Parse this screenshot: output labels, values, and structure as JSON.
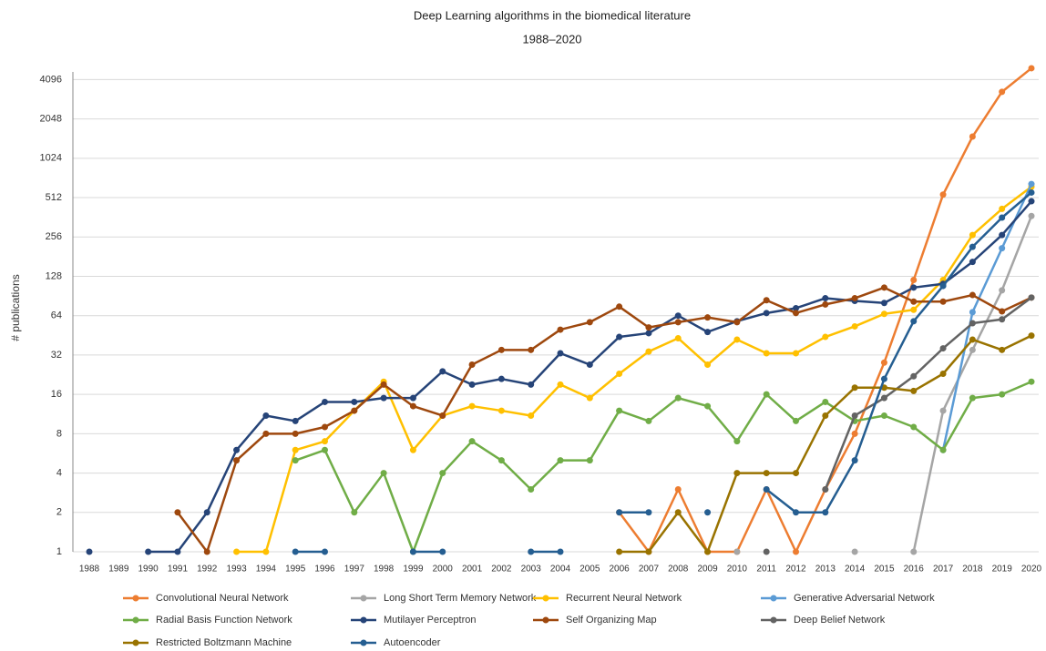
{
  "chart_data": {
    "type": "line",
    "title": "Deep Learning algorithms in the biomedical literature",
    "subtitle": "1988–2020",
    "y_label": "# publications",
    "yscale": "log",
    "log_base": 2,
    "ylim": [
      1,
      5500
    ],
    "yticks": [
      1,
      2,
      4,
      8,
      16,
      32,
      64,
      128,
      256,
      512,
      1024,
      2048,
      4096
    ],
    "grid": true,
    "legend": "bottom",
    "categories": [
      "1988",
      "1989",
      "1990",
      "1991",
      "1992",
      "1993",
      "1994",
      "1995",
      "1996",
      "1997",
      "1998",
      "1999",
      "2000",
      "2001",
      "2002",
      "2003",
      "2004",
      "2005",
      "2006",
      "2007",
      "2008",
      "2009",
      "2010",
      "2011",
      "2012",
      "2013",
      "2014",
      "2015",
      "2016",
      "2017",
      "2018",
      "2019",
      "2020"
    ],
    "series": [
      {
        "name": "Convolutional Neural Network",
        "color": "#ed7d31",
        "values": [
          null,
          null,
          null,
          null,
          null,
          null,
          null,
          null,
          null,
          null,
          null,
          null,
          null,
          null,
          null,
          null,
          null,
          null,
          2,
          1,
          3,
          1,
          1,
          3,
          1,
          3,
          8,
          28,
          120,
          540,
          1500,
          3300,
          5000
        ]
      },
      {
        "name": "Long Short Term Memory Network",
        "color": "#a5a5a5",
        "values": [
          null,
          null,
          null,
          null,
          null,
          null,
          null,
          null,
          null,
          null,
          null,
          null,
          null,
          null,
          null,
          null,
          null,
          null,
          null,
          null,
          null,
          null,
          1,
          null,
          null,
          null,
          1,
          null,
          1,
          12,
          35,
          100,
          370
        ]
      },
      {
        "name": "Recurrent Neural Network",
        "color": "#ffc000",
        "values": [
          null,
          null,
          null,
          null,
          null,
          1,
          1,
          6,
          7,
          12,
          20,
          6,
          11,
          13,
          12,
          11,
          19,
          15,
          23,
          34,
          43,
          27,
          42,
          33,
          33,
          44,
          53,
          66,
          71,
          120,
          265,
          420,
          620
        ]
      },
      {
        "name": "Generative Adversarial Network",
        "color": "#5b9bd5",
        "values": [
          null,
          null,
          null,
          null,
          null,
          null,
          null,
          null,
          null,
          null,
          null,
          null,
          null,
          null,
          null,
          null,
          null,
          null,
          null,
          null,
          null,
          null,
          null,
          null,
          null,
          null,
          null,
          null,
          null,
          6,
          68,
          210,
          650
        ]
      },
      {
        "name": "Radial Basis Function Network",
        "color": "#70ad47",
        "values": [
          null,
          null,
          null,
          null,
          null,
          null,
          null,
          5,
          6,
          2,
          4,
          1,
          4,
          7,
          5,
          3,
          5,
          5,
          12,
          10,
          15,
          13,
          7,
          16,
          10,
          14,
          10,
          11,
          9,
          6,
          15,
          16,
          20
        ]
      },
      {
        "name": "Mutilayer Perceptron",
        "color": "#264478",
        "values": [
          1,
          null,
          1,
          1,
          2,
          6,
          11,
          10,
          14,
          14,
          15,
          15,
          24,
          19,
          21,
          19,
          33,
          27,
          44,
          47,
          64,
          48,
          58,
          67,
          73,
          87,
          83,
          80,
          105,
          112,
          165,
          265,
          480
        ]
      },
      {
        "name": "Self Organizing Map",
        "color": "#9e480e",
        "values": [
          null,
          null,
          null,
          2,
          1,
          5,
          8,
          8,
          9,
          12,
          19,
          13,
          11,
          27,
          35,
          35,
          50,
          57,
          75,
          52,
          57,
          62,
          57,
          84,
          67,
          78,
          87,
          105,
          82,
          82,
          92,
          69,
          88
        ]
      },
      {
        "name": "Deep Belief Network",
        "color": "#636363",
        "values": [
          null,
          null,
          null,
          null,
          null,
          null,
          null,
          null,
          null,
          null,
          null,
          null,
          null,
          null,
          null,
          null,
          null,
          null,
          null,
          null,
          null,
          null,
          null,
          1,
          null,
          3,
          11,
          15,
          22,
          36,
          56,
          60,
          88
        ]
      },
      {
        "name": "Restricted Boltzmann Machine",
        "color": "#997300",
        "values": [
          null,
          null,
          null,
          null,
          null,
          null,
          null,
          null,
          null,
          null,
          null,
          null,
          null,
          null,
          null,
          null,
          null,
          null,
          1,
          1,
          2,
          1,
          4,
          4,
          4,
          11,
          18,
          18,
          17,
          23,
          42,
          35,
          45
        ]
      },
      {
        "name": "Autoencoder",
        "color": "#255e91",
        "values": [
          null,
          null,
          null,
          null,
          null,
          null,
          null,
          1,
          1,
          null,
          null,
          1,
          1,
          null,
          null,
          1,
          1,
          null,
          2,
          2,
          null,
          2,
          null,
          3,
          2,
          2,
          5,
          21,
          58,
          108,
          215,
          360,
          560
        ]
      }
    ]
  }
}
